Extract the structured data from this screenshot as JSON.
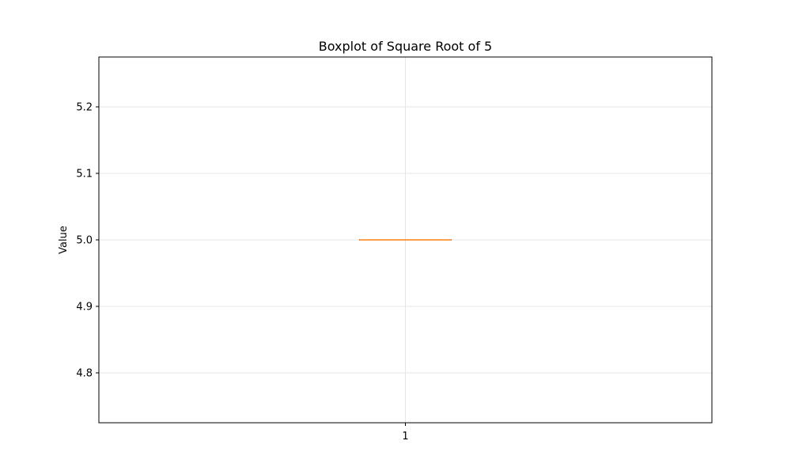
{
  "chart_data": {
    "type": "boxplot",
    "title": "Boxplot of Square Root of 5",
    "xlabel": "",
    "ylabel": "Value",
    "categories": [
      "1"
    ],
    "boxes": [
      {
        "category": "1",
        "min": 5.0,
        "q1": 5.0,
        "median": 5.0,
        "q3": 5.0,
        "max": 5.0
      }
    ],
    "ylim": [
      4.725,
      5.275
    ],
    "yticks": [
      4.8,
      4.9,
      5.0,
      5.1,
      5.2
    ],
    "ytick_labels": [
      "4.8",
      "4.9",
      "5.0",
      "5.1",
      "5.2"
    ],
    "grid": true,
    "colors": {
      "median": "#ff7f0e",
      "box": "#000000",
      "grid": "#e6e6e6"
    }
  }
}
